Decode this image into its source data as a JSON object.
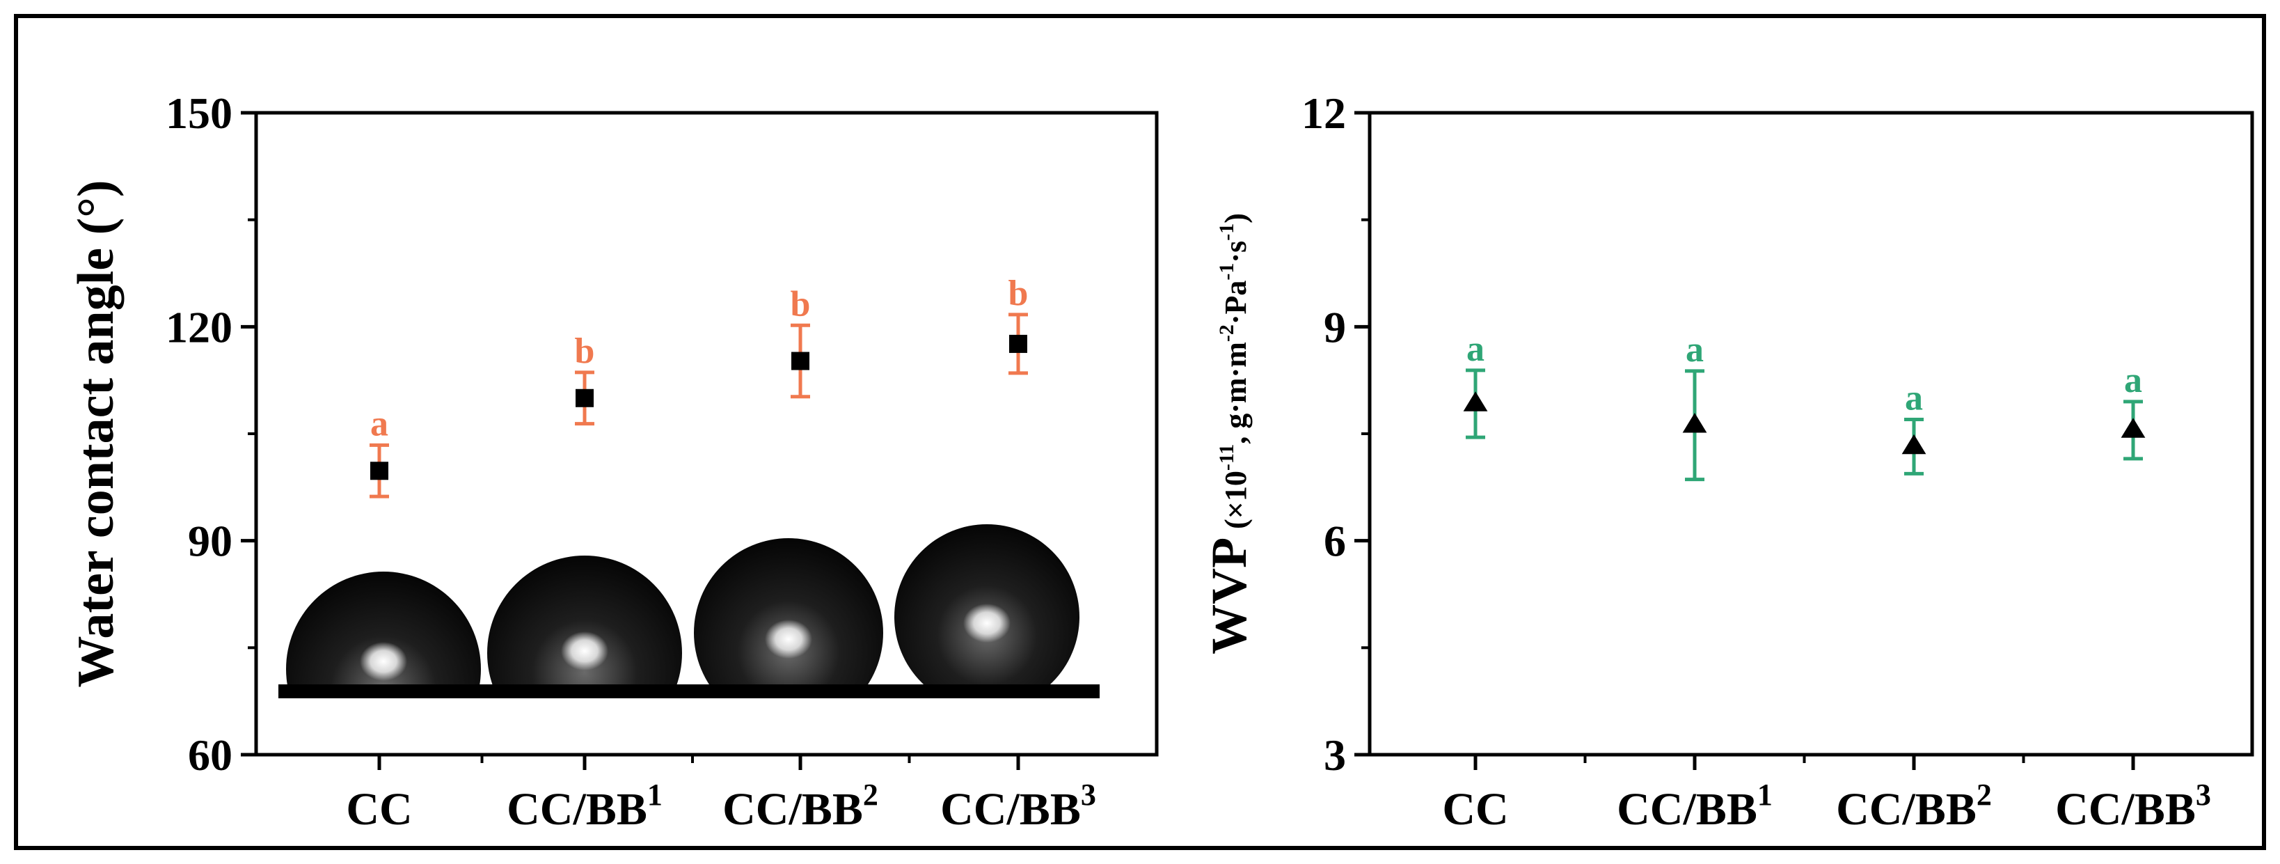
{
  "chart_data": [
    {
      "type": "scatter",
      "ylabel": "Water contact angle (°)",
      "ylim": [
        60,
        150
      ],
      "yticks": [
        "60",
        "90",
        "120",
        "150"
      ],
      "categories": [
        {
          "base": "CC",
          "sup": ""
        },
        {
          "base": "CC/BB",
          "sup": "1"
        },
        {
          "base": "CC/BB",
          "sup": "2"
        },
        {
          "base": "CC/BB",
          "sup": "3"
        }
      ],
      "values": [
        99.8,
        110.0,
        115.2,
        117.6
      ],
      "errors": [
        3.6,
        3.6,
        5.0,
        4.1
      ],
      "significance": [
        "a",
        "b",
        "b",
        "b"
      ],
      "marker": "square",
      "marker_color": "#000000",
      "error_color": "#f0794f",
      "inset": "droplet-images",
      "grid": false
    },
    {
      "type": "scatter",
      "ylabel": "WVP",
      "ylabel_unit_parts": [
        "(×10",
        "-11",
        ", g·m·m",
        "-2",
        "·Pa",
        "-1",
        "·s",
        "-1",
        ")"
      ],
      "ylim": [
        3,
        12
      ],
      "yticks": [
        "3",
        "6",
        "9",
        "12"
      ],
      "categories": [
        {
          "base": "CC",
          "sup": ""
        },
        {
          "base": "CC/BB",
          "sup": "1"
        },
        {
          "base": "CC/BB",
          "sup": "2"
        },
        {
          "base": "CC/BB",
          "sup": "3"
        }
      ],
      "values": [
        7.92,
        7.62,
        7.32,
        7.55
      ],
      "errors": [
        0.47,
        0.76,
        0.38,
        0.4
      ],
      "significance": [
        "a",
        "a",
        "a",
        "a"
      ],
      "marker": "triangle",
      "marker_color": "#000000",
      "error_color": "#2fa676",
      "grid": false
    }
  ]
}
